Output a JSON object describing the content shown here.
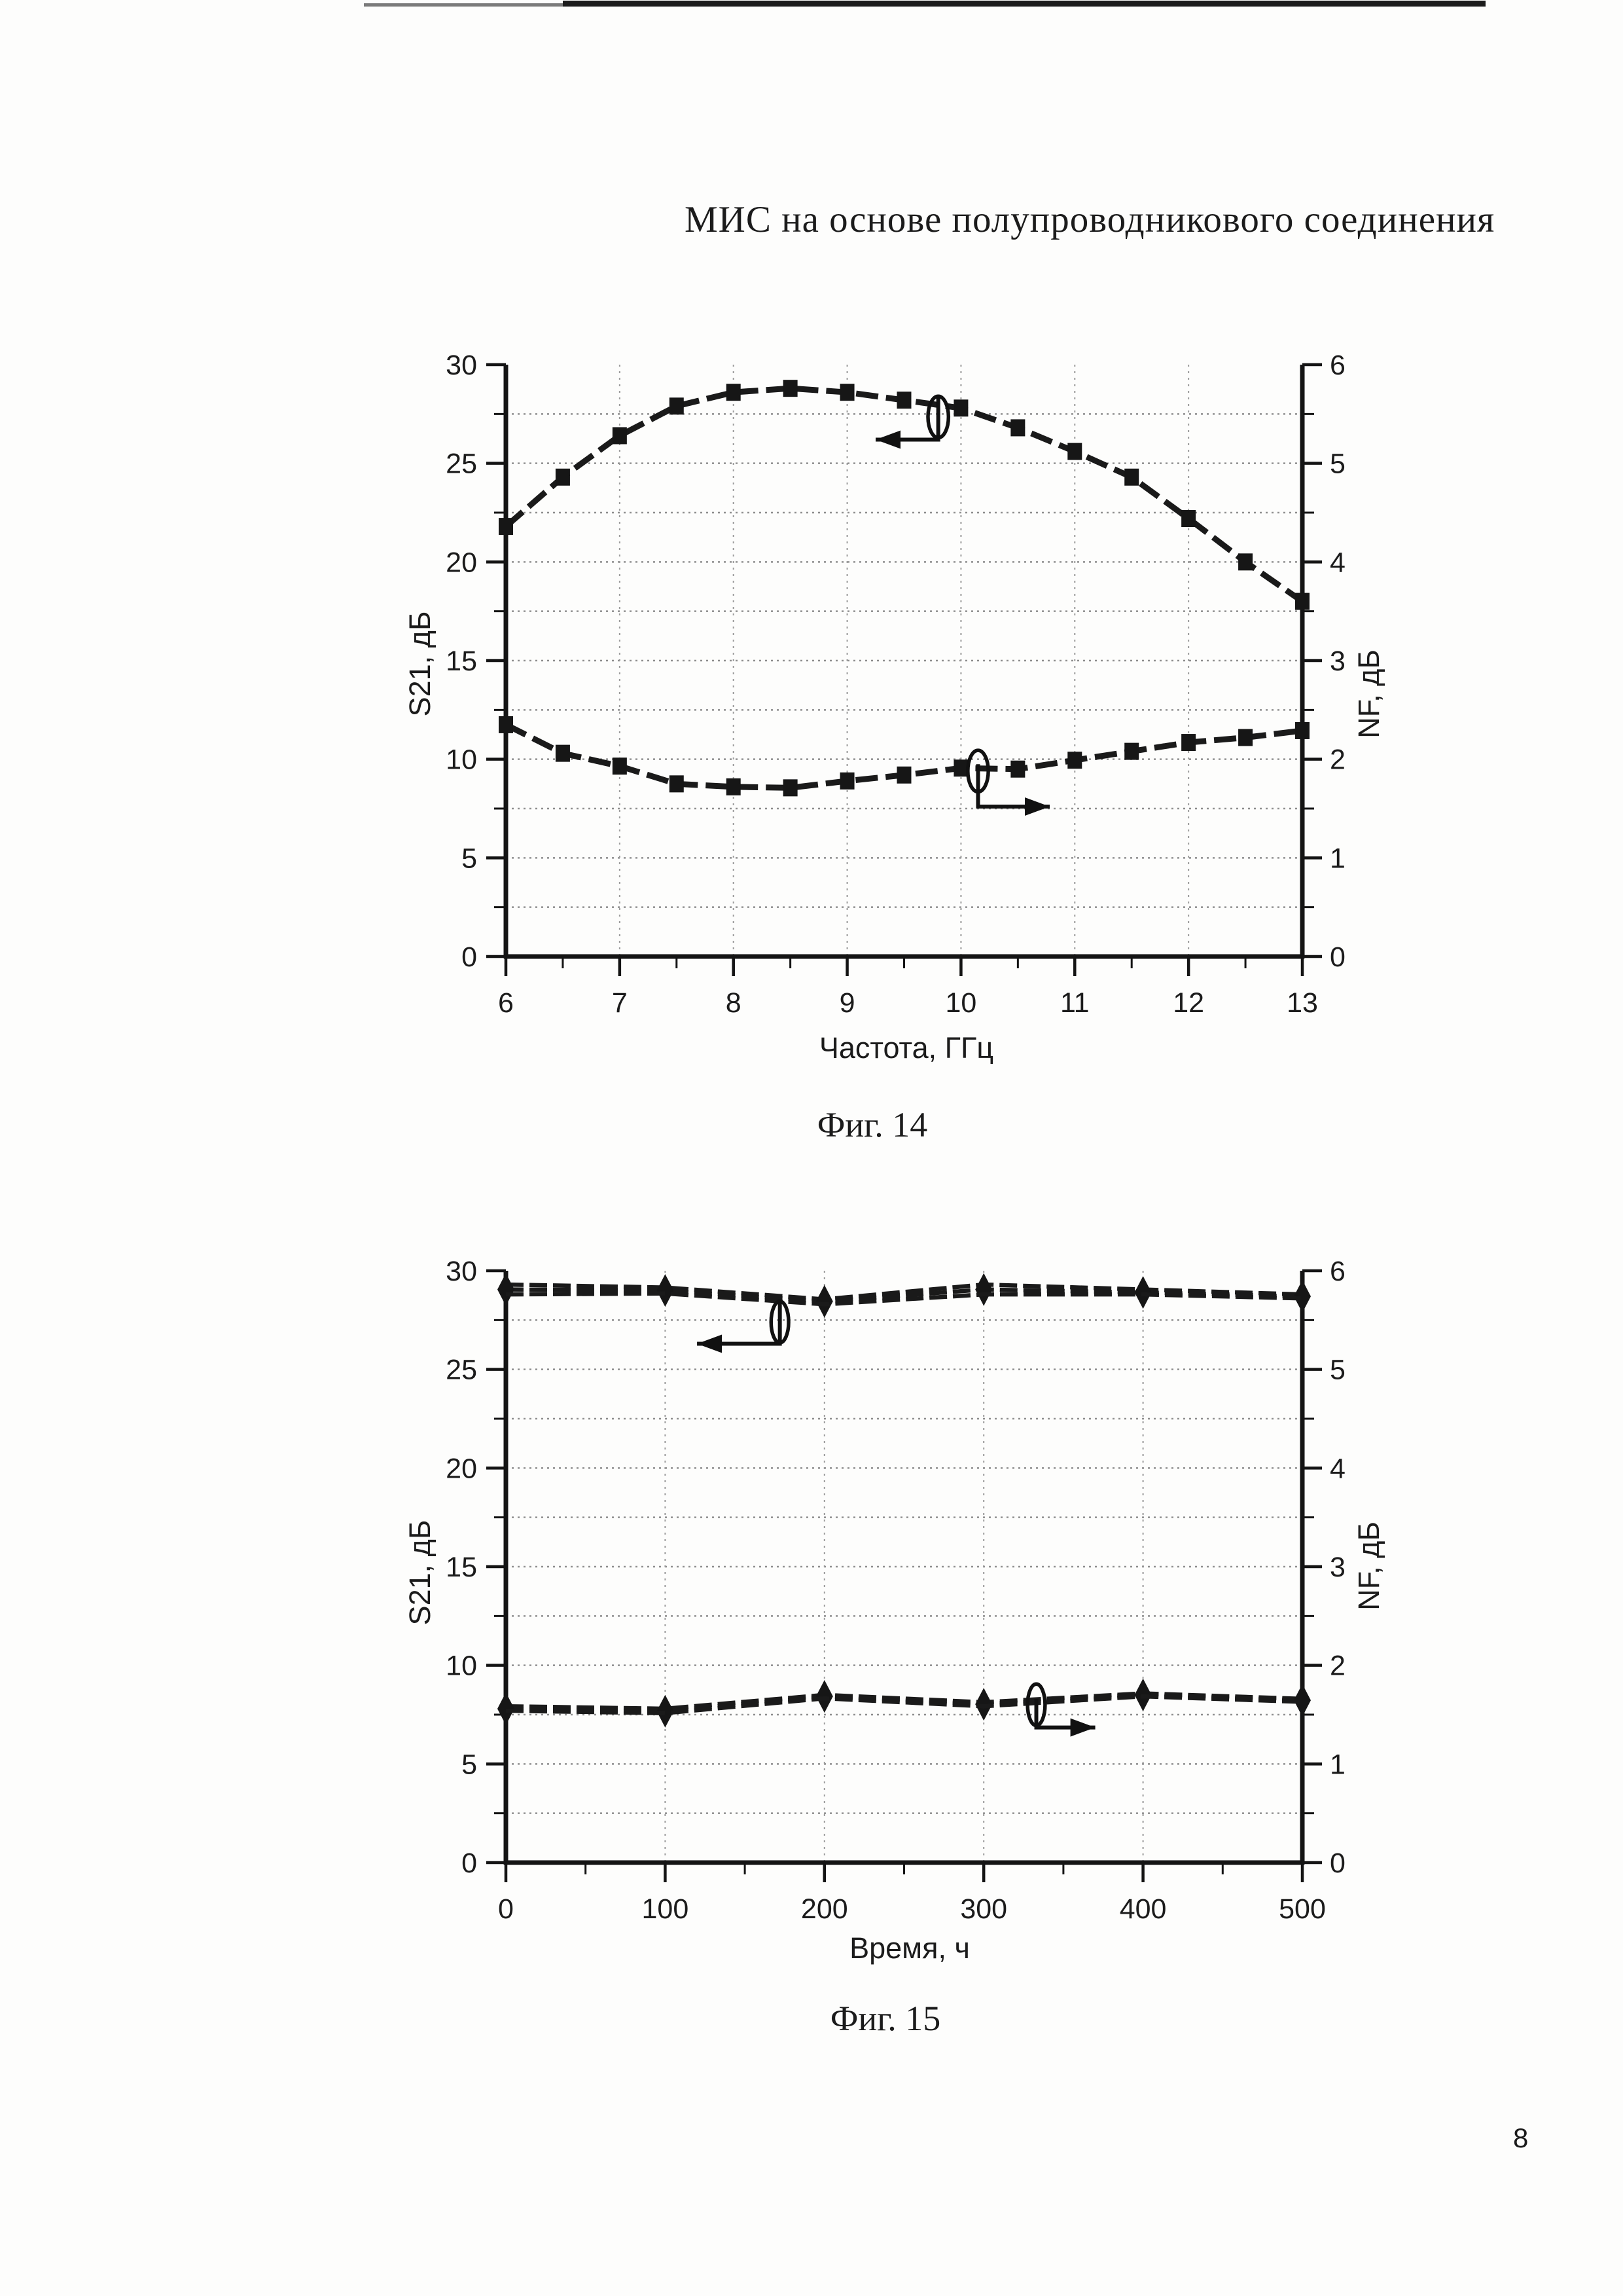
{
  "page": {
    "number": "8"
  },
  "header": {
    "title": "МИС на основе полупроводникового соединения"
  },
  "colors": {
    "ink": "#1b1b1b",
    "grid": "#8f8f8f",
    "paper": "#fdfdfc"
  },
  "chart_data": [
    {
      "type": "line",
      "caption": "Фиг. 14",
      "xlabel": "Частота, ГГц",
      "ylabel_left": "S21, дБ",
      "ylabel_right": "NF, дБ",
      "xlim": [
        6,
        13
      ],
      "xticks": [
        6,
        7,
        8,
        9,
        10,
        11,
        12,
        13
      ],
      "x_minor_step": 0.5,
      "ylim_left": [
        0,
        30
      ],
      "yticks_left": [
        0,
        5,
        10,
        15,
        20,
        25,
        30
      ],
      "y_left_minor_step": 2.5,
      "ylim_right": [
        0,
        6
      ],
      "yticks_right": [
        0,
        1,
        2,
        3,
        4,
        5,
        6
      ],
      "y_right_minor_step": 0.5,
      "grid": "dotted",
      "legend": "none",
      "series": [
        {
          "name": "S21",
          "axis": "left",
          "marker": "square",
          "x": [
            6,
            6.5,
            7,
            7.5,
            8,
            8.5,
            9,
            9.5,
            10,
            10.5,
            11,
            11.5,
            12,
            12.5,
            13
          ],
          "y": [
            21.8,
            24.3,
            26.4,
            27.9,
            28.6,
            28.8,
            28.6,
            28.2,
            27.8,
            26.8,
            25.6,
            24.3,
            22.2,
            20.0,
            18.0
          ]
        },
        {
          "name": "NF",
          "axis": "right",
          "marker": "square",
          "x": [
            6,
            6.5,
            7,
            7.5,
            8,
            8.5,
            9,
            9.5,
            10,
            10.5,
            11,
            11.5,
            12,
            12.5,
            13
          ],
          "y": [
            2.35,
            2.06,
            1.93,
            1.75,
            1.72,
            1.71,
            1.78,
            1.84,
            1.91,
            1.9,
            1.99,
            2.08,
            2.17,
            2.22,
            2.29
          ]
        }
      ],
      "annotations": [
        {
          "target": "S21",
          "axis": "left",
          "ellipse": [
            9.8,
            27.35,
            0.09,
            1.05
          ],
          "arrow": [
            [
              9.8,
              28.45
            ],
            [
              9.8,
              26.2
            ],
            [
              9.25,
              26.2
            ]
          ],
          "head": "left"
        },
        {
          "target": "NF",
          "axis": "right",
          "ellipse": [
            10.15,
            1.88,
            0.09,
            0.21
          ],
          "arrow": [
            [
              10.15,
              1.95
            ],
            [
              10.15,
              1.52
            ],
            [
              10.78,
              1.52
            ]
          ],
          "head": "right"
        }
      ]
    },
    {
      "type": "line",
      "caption": "Фиг. 15",
      "xlabel": "Время, ч",
      "ylabel_left": "S21, дБ",
      "ylabel_right": "NF, дБ",
      "xlim": [
        0,
        500
      ],
      "xticks": [
        0,
        100,
        200,
        300,
        400,
        500
      ],
      "x_minor_step": 50,
      "ylim_left": [
        0,
        30
      ],
      "yticks_left": [
        0,
        5,
        10,
        15,
        20,
        25,
        30
      ],
      "y_left_minor_step": 2.5,
      "ylim_right": [
        0,
        6
      ],
      "yticks_right": [
        0,
        1,
        2,
        3,
        4,
        5,
        6
      ],
      "y_right_minor_step": 0.5,
      "grid": "dotted",
      "legend": "none",
      "series": [
        {
          "name": "S21-1",
          "axis": "left",
          "marker": null,
          "x": [
            0,
            100,
            200,
            300,
            400,
            500
          ],
          "y": [
            29.3,
            29.15,
            28.55,
            29.3,
            29.05,
            28.8
          ]
        },
        {
          "name": "S21-2",
          "axis": "left",
          "marker": "diamond",
          "x": [
            0,
            100,
            200,
            300,
            400,
            500
          ],
          "y": [
            29.05,
            29.0,
            28.45,
            29.05,
            28.9,
            28.7
          ]
        },
        {
          "name": "S21-3",
          "axis": "left",
          "marker": null,
          "x": [
            0,
            100,
            200,
            300,
            400,
            500
          ],
          "y": [
            28.8,
            28.85,
            28.3,
            28.8,
            28.8,
            28.6
          ]
        },
        {
          "name": "NF-1",
          "axis": "right",
          "marker": null,
          "x": [
            0,
            100,
            200,
            300,
            400,
            500
          ],
          "y": [
            1.585,
            1.56,
            1.7,
            1.625,
            1.715,
            1.66
          ]
        },
        {
          "name": "NF-2",
          "axis": "right",
          "marker": "diamond",
          "x": [
            0,
            100,
            200,
            300,
            400,
            500
          ],
          "y": [
            1.56,
            1.535,
            1.685,
            1.605,
            1.7,
            1.645
          ]
        },
        {
          "name": "NF-3",
          "axis": "right",
          "marker": null,
          "x": [
            0,
            100,
            200,
            300,
            400,
            500
          ],
          "y": [
            1.54,
            1.515,
            1.665,
            1.585,
            1.685,
            1.63
          ]
        }
      ],
      "annotations": [
        {
          "target": "S21",
          "axis": "left",
          "ellipse": [
            172,
            27.4,
            5.5,
            1.05
          ],
          "arrow": [
            [
              172,
              28.4
            ],
            [
              172,
              26.3
            ],
            [
              120,
              26.3
            ]
          ],
          "head": "left"
        },
        {
          "target": "NF",
          "axis": "right",
          "ellipse": [
            333,
            1.6,
            5.5,
            0.21
          ],
          "arrow": [
            [
              333,
              1.66
            ],
            [
              333,
              1.37
            ],
            [
              370,
              1.37
            ]
          ],
          "head": "right"
        }
      ]
    }
  ]
}
